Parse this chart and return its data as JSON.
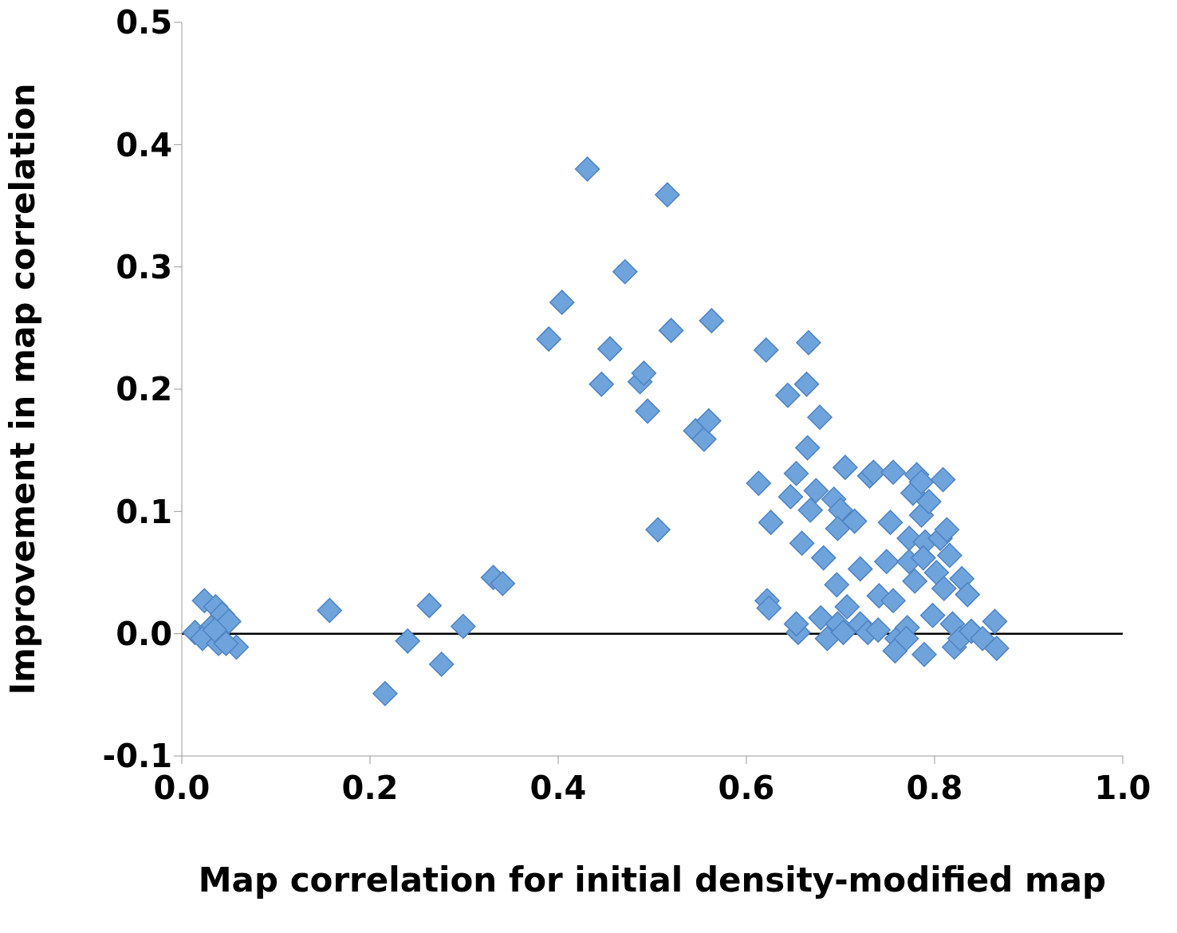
{
  "chart_data": {
    "type": "scatter",
    "xlabel": "Map correlation for initial density-modified map",
    "ylabel": "Improvement in map correlation",
    "xlim": [
      0,
      1
    ],
    "xticks": [
      {
        "value": 0,
        "label": "0.0"
      },
      {
        "value": 0.2,
        "label": "0.2"
      },
      {
        "value": 0.4,
        "label": "0.4"
      },
      {
        "value": 0.6,
        "label": "0.6"
      },
      {
        "value": 0.8,
        "label": "0.8"
      },
      {
        "value": 1,
        "label": "1.0"
      }
    ],
    "ylim": [
      -0.1,
      0.5
    ],
    "yticks": [
      {
        "value": -0.1,
        "label": "-0.1"
      },
      {
        "value": 0,
        "label": "0.0"
      },
      {
        "value": 0.1,
        "label": "0.1"
      },
      {
        "value": 0.2,
        "label": "0.2"
      },
      {
        "value": 0.3,
        "label": "0.3"
      },
      {
        "value": 0.4,
        "label": "0.4"
      },
      {
        "value": 0.5,
        "label": "0.5"
      }
    ],
    "grid": false,
    "legend": false,
    "marker": "diamond",
    "ref_lines": [
      {
        "axis": "y",
        "value": 0,
        "color": "#000000"
      }
    ],
    "series": [
      {
        "color": "#6fa3dc",
        "x": [
          0.024,
          0.014,
          0.036,
          0.043,
          0.05,
          0.031,
          0.022,
          0.039,
          0.058,
          0.047,
          0.035,
          0.157,
          0.216,
          0.24,
          0.263,
          0.276,
          0.299,
          0.331,
          0.341,
          0.39,
          0.404,
          0.431,
          0.446,
          0.455,
          0.471,
          0.487,
          0.491,
          0.495,
          0.506,
          0.516,
          0.52,
          0.546,
          0.555,
          0.56,
          0.563,
          0.621,
          0.613,
          0.626,
          0.622,
          0.624,
          0.644,
          0.653,
          0.647,
          0.659,
          0.655,
          0.653,
          0.666,
          0.664,
          0.678,
          0.665,
          0.668,
          0.674,
          0.682,
          0.679,
          0.686,
          0.705,
          0.693,
          0.7,
          0.697,
          0.715,
          0.696,
          0.707,
          0.697,
          0.703,
          0.721,
          0.731,
          0.735,
          0.721,
          0.729,
          0.74,
          0.741,
          0.753,
          0.749,
          0.756,
          0.756,
          0.76,
          0.758,
          0.773,
          0.773,
          0.771,
          0.77,
          0.777,
          0.779,
          0.781,
          0.786,
          0.786,
          0.79,
          0.788,
          0.789,
          0.794,
          0.798,
          0.802,
          0.806,
          0.809,
          0.813,
          0.81,
          0.816,
          0.819,
          0.821,
          0.827,
          0.829,
          0.835,
          0.839,
          0.851,
          0.864,
          0.866
        ],
        "values": [
          0.027,
          0.001,
          0.022,
          0.016,
          0.01,
          0.005,
          -0.004,
          -0.008,
          -0.011,
          -0.008,
          0.003,
          0.019,
          -0.049,
          -0.006,
          0.023,
          -0.025,
          0.006,
          0.046,
          0.041,
          0.241,
          0.271,
          0.38,
          0.204,
          0.233,
          0.296,
          0.206,
          0.213,
          0.182,
          0.085,
          0.359,
          0.248,
          0.166,
          0.159,
          0.174,
          0.256,
          0.232,
          0.123,
          0.091,
          0.027,
          0.021,
          0.195,
          0.131,
          0.112,
          0.074,
          0.001,
          0.008,
          0.238,
          0.204,
          0.177,
          0.152,
          0.101,
          0.117,
          0.062,
          0.013,
          -0.004,
          0.136,
          0.11,
          0.101,
          0.086,
          0.092,
          0.04,
          0.022,
          0.008,
          0.001,
          0.053,
          0.129,
          0.132,
          0.008,
          0.001,
          0.003,
          0.031,
          0.091,
          0.059,
          0.132,
          0.027,
          -0.004,
          -0.014,
          0.078,
          0.059,
          0.005,
          -0.004,
          0.115,
          0.043,
          0.13,
          0.097,
          0.124,
          0.075,
          0.062,
          -0.017,
          0.108,
          0.015,
          0.05,
          0.078,
          0.126,
          0.085,
          0.037,
          0.064,
          0.008,
          -0.011,
          -0.004,
          0.045,
          0.032,
          0.002,
          -0.004,
          0.01,
          -0.012
        ]
      }
    ]
  }
}
